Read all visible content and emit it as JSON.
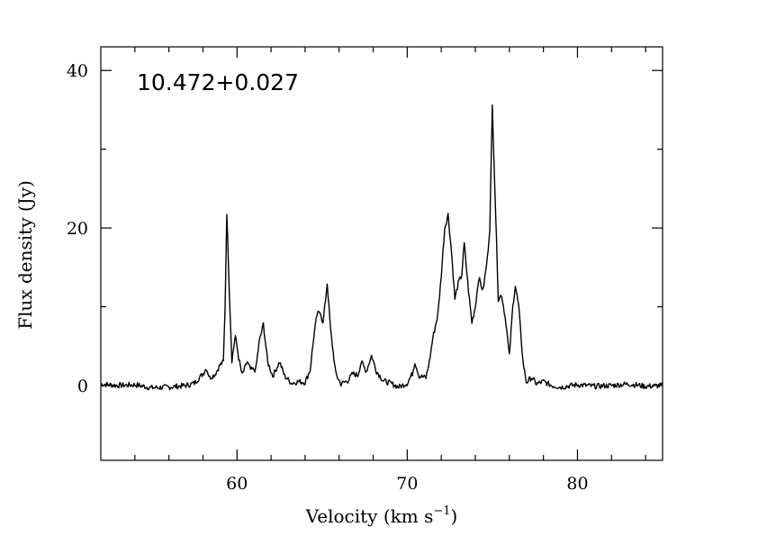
{
  "chart_data": {
    "type": "line",
    "title": "10.472+0.027",
    "xlabel": "Velocity (km s",
    "xlabel_superscript": "−1",
    "xlabel_suffix": ")",
    "ylabel": "Flux density (Jy)",
    "xlim": [
      52,
      85
    ],
    "ylim": [
      -9.5,
      43
    ],
    "x_major_ticks": [
      60,
      70,
      80
    ],
    "x_minor_ticks": [
      54,
      56,
      58,
      62,
      64,
      66,
      68,
      72,
      74,
      76,
      78,
      82,
      84
    ],
    "y_major_ticks": [
      0,
      20,
      40
    ],
    "y_minor_ticks": [
      10,
      30
    ],
    "grid": false,
    "series": [
      {
        "points": [
          [
            52.0,
            0.2
          ],
          [
            53.0,
            0.0
          ],
          [
            54.0,
            0.1
          ],
          [
            55.0,
            -0.3
          ],
          [
            56.0,
            -0.2
          ],
          [
            57.0,
            0.0
          ],
          [
            57.5,
            0.3
          ],
          [
            58.0,
            1.5
          ],
          [
            58.2,
            2.2
          ],
          [
            58.4,
            1.0
          ],
          [
            58.7,
            1.4
          ],
          [
            59.0,
            2.6
          ],
          [
            59.2,
            3.0
          ],
          [
            59.3,
            10.0
          ],
          [
            59.4,
            22.0
          ],
          [
            59.55,
            12.0
          ],
          [
            59.7,
            3.2
          ],
          [
            59.9,
            6.3
          ],
          [
            60.1,
            3.5
          ],
          [
            60.3,
            1.3
          ],
          [
            60.6,
            3.0
          ],
          [
            60.8,
            2.0
          ],
          [
            61.1,
            2.0
          ],
          [
            61.3,
            5.5
          ],
          [
            61.55,
            7.8
          ],
          [
            61.8,
            3.0
          ],
          [
            62.1,
            1.2
          ],
          [
            62.5,
            3.0
          ],
          [
            62.8,
            1.2
          ],
          [
            63.2,
            0.3
          ],
          [
            63.6,
            0.5
          ],
          [
            64.0,
            0.4
          ],
          [
            64.3,
            2.0
          ],
          [
            64.5,
            6.0
          ],
          [
            64.7,
            9.0
          ],
          [
            64.9,
            9.4
          ],
          [
            65.05,
            7.8
          ],
          [
            65.3,
            13.0
          ],
          [
            65.5,
            7.0
          ],
          [
            65.8,
            1.5
          ],
          [
            66.1,
            0.2
          ],
          [
            66.5,
            0.6
          ],
          [
            66.8,
            1.5
          ],
          [
            67.1,
            1.3
          ],
          [
            67.3,
            3.0
          ],
          [
            67.6,
            1.8
          ],
          [
            67.9,
            3.8
          ],
          [
            68.2,
            1.8
          ],
          [
            68.6,
            0.6
          ],
          [
            69.0,
            0.3
          ],
          [
            69.5,
            -0.2
          ],
          [
            70.0,
            0.3
          ],
          [
            70.3,
            1.5
          ],
          [
            70.45,
            3.0
          ],
          [
            70.7,
            1.2
          ],
          [
            71.1,
            1.0
          ],
          [
            71.3,
            3.0
          ],
          [
            71.5,
            6.0
          ],
          [
            71.8,
            9.0
          ],
          [
            72.0,
            14.0
          ],
          [
            72.2,
            20.0
          ],
          [
            72.4,
            21.7
          ],
          [
            72.6,
            17.0
          ],
          [
            72.8,
            11.0
          ],
          [
            73.0,
            13.0
          ],
          [
            73.2,
            14.0
          ],
          [
            73.35,
            18.0
          ],
          [
            73.6,
            12.0
          ],
          [
            73.8,
            8.0
          ],
          [
            74.0,
            10.0
          ],
          [
            74.2,
            13.7
          ],
          [
            74.45,
            12.0
          ],
          [
            74.7,
            16.0
          ],
          [
            74.85,
            20.0
          ],
          [
            75.0,
            35.5
          ],
          [
            75.15,
            25.0
          ],
          [
            75.35,
            11.0
          ],
          [
            75.55,
            11.5
          ],
          [
            75.8,
            8.0
          ],
          [
            76.0,
            3.7
          ],
          [
            76.2,
            10.0
          ],
          [
            76.35,
            12.7
          ],
          [
            76.55,
            10.0
          ],
          [
            76.8,
            3.0
          ],
          [
            77.0,
            0.4
          ],
          [
            77.3,
            1.0
          ],
          [
            77.6,
            0.2
          ],
          [
            78.0,
            0.5
          ],
          [
            78.5,
            0.0
          ],
          [
            79.0,
            -0.2
          ],
          [
            80.0,
            0.1
          ],
          [
            81.0,
            -0.1
          ],
          [
            82.0,
            0.0
          ],
          [
            83.0,
            0.2
          ],
          [
            84.0,
            -0.1
          ],
          [
            85.0,
            0.0
          ]
        ]
      }
    ]
  }
}
